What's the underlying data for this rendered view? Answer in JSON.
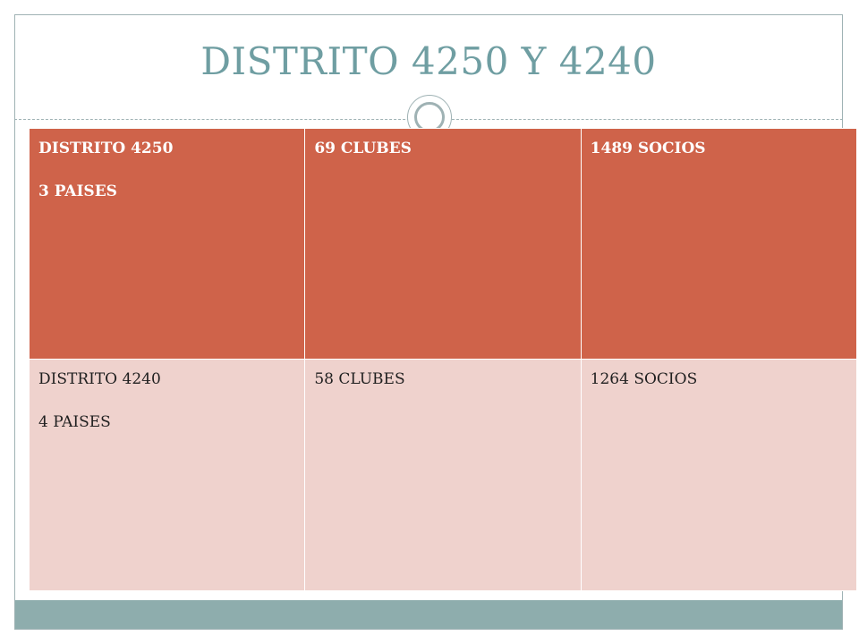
{
  "slide": {
    "title": "DISTRITO 4250 Y 4240"
  },
  "table": {
    "rows": [
      {
        "cells": [
          {
            "line1": "DISTRITO 4250",
            "line2": "3 PAISES"
          },
          {
            "line1": "69 CLUBES",
            "line2": ""
          },
          {
            "line1": "1489 SOCIOS",
            "line2": ""
          }
        ]
      },
      {
        "cells": [
          {
            "line1": "DISTRITO 4240",
            "line2": "4 PAISES"
          },
          {
            "line1": "58 CLUBES",
            "line2": ""
          },
          {
            "line1": "1264 SOCIOS",
            "line2": ""
          }
        ]
      }
    ]
  },
  "colors": {
    "header_row": "#cf634a",
    "body_row": "#efd2cd",
    "accent": "#6f9ea2",
    "footer_band": "#8eadad"
  }
}
